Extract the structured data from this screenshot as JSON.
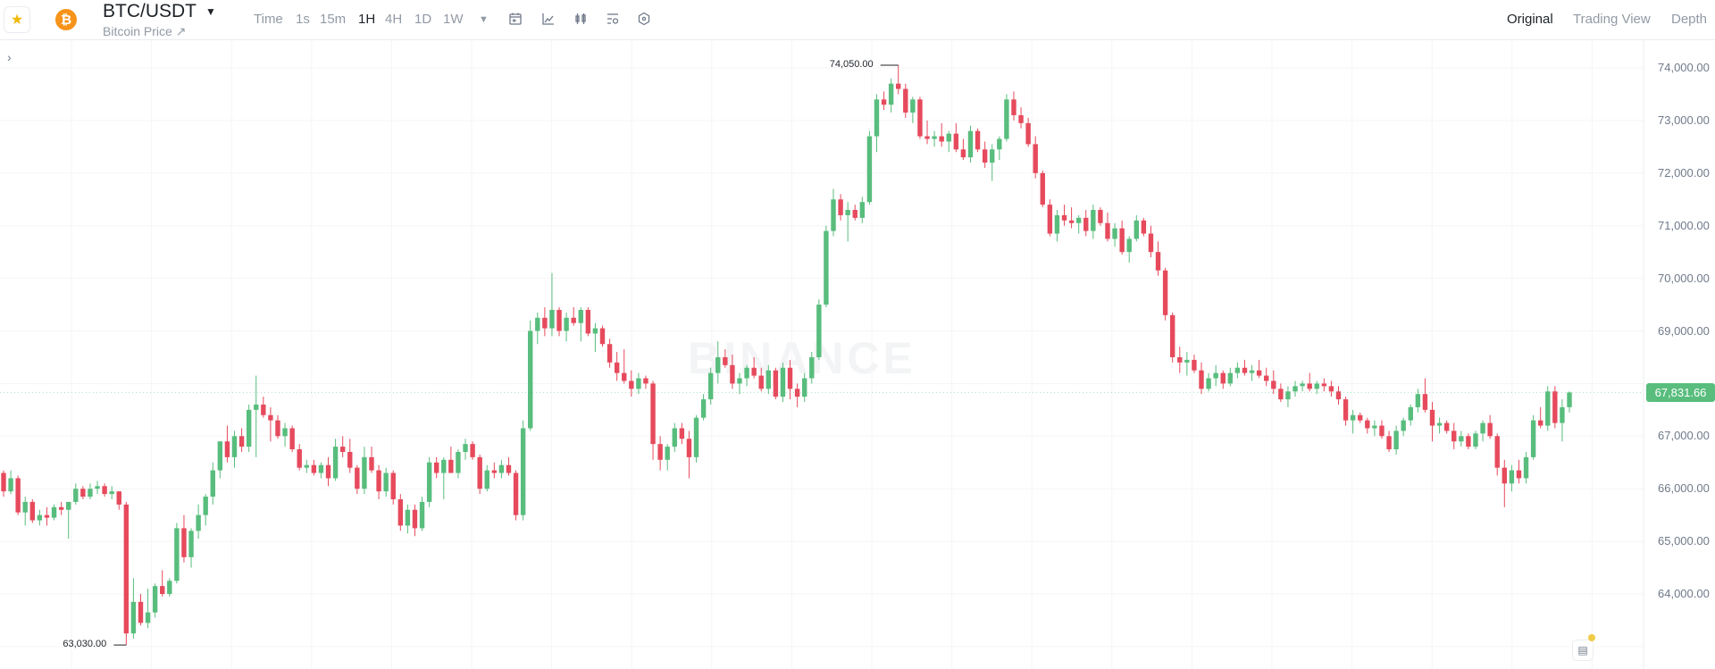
{
  "header": {
    "favorite_icon": "star-icon",
    "coin_icon": "bitcoin-icon",
    "coin_glyph": "₿",
    "symbol": "BTC/USDT",
    "subtitle": "Bitcoin Price ↗",
    "intervals": [
      {
        "label": "Time",
        "active": false
      },
      {
        "label": "1s",
        "active": false
      },
      {
        "label": "15m",
        "active": false
      },
      {
        "label": "1H",
        "active": true
      },
      {
        "label": "4H",
        "active": false
      },
      {
        "label": "1D",
        "active": false
      },
      {
        "label": "1W",
        "active": false
      }
    ],
    "tools": [
      "calendar-icon",
      "line-chart-icon",
      "candlestick-icon",
      "indicator-settings-icon",
      "hexagon-settings-icon"
    ],
    "views": [
      {
        "label": "Original",
        "active": true
      },
      {
        "label": "Trading View",
        "active": false
      },
      {
        "label": "Depth",
        "active": false
      }
    ]
  },
  "watermark": "BINANCE",
  "colors": {
    "up": "#58bd7d",
    "down": "#e64a5c",
    "grid": "#f5f5f5",
    "accent": "#f0b90b"
  },
  "chart_data": {
    "type": "candlestick",
    "interval": "1H",
    "y_ticks": [
      "74,000.00",
      "73,000.00",
      "72,000.00",
      "71,000.00",
      "70,000.00",
      "69,000.00",
      "67,000.00",
      "66,000.00",
      "65,000.00",
      "64,000.00"
    ],
    "y_tick_values": [
      74000,
      73000,
      72000,
      71000,
      70000,
      69000,
      67000,
      66000,
      65000,
      64000
    ],
    "ylim": [
      62100,
      74900
    ],
    "grid": true,
    "last_price": "67,831.66",
    "high_label": "74,050.00",
    "low_label": "63,030.00",
    "ohlc": [
      [
        66300,
        66350,
        65850,
        65950
      ],
      [
        65950,
        66350,
        65900,
        66200
      ],
      [
        66200,
        66250,
        65500,
        65550
      ],
      [
        65550,
        65850,
        65300,
        65750
      ],
      [
        65750,
        65800,
        65350,
        65400
      ],
      [
        65400,
        65600,
        65300,
        65500
      ],
      [
        65500,
        65650,
        65300,
        65450
      ],
      [
        65450,
        65700,
        65400,
        65650
      ],
      [
        65650,
        65750,
        65500,
        65600
      ],
      [
        65600,
        65700,
        65050,
        65750
      ],
      [
        65750,
        66100,
        65700,
        66000
      ],
      [
        66000,
        66050,
        65800,
        65850
      ],
      [
        65850,
        66100,
        65800,
        66000
      ],
      [
        66000,
        66150,
        65900,
        66050
      ],
      [
        66050,
        66100,
        65850,
        65900
      ],
      [
        65900,
        66050,
        65800,
        65950
      ],
      [
        65950,
        65950,
        65600,
        65700
      ],
      [
        65700,
        65750,
        63030,
        63250
      ],
      [
        63250,
        64300,
        63150,
        63850
      ],
      [
        63850,
        64000,
        63400,
        63450
      ],
      [
        63450,
        64100,
        63350,
        63650
      ],
      [
        63650,
        64200,
        63550,
        64150
      ],
      [
        64150,
        64450,
        63950,
        64000
      ],
      [
        64000,
        64300,
        63950,
        64250
      ],
      [
        64250,
        65350,
        64200,
        65250
      ],
      [
        65250,
        65500,
        64600,
        64700
      ],
      [
        64700,
        65250,
        64500,
        65200
      ],
      [
        65200,
        65700,
        65050,
        65500
      ],
      [
        65500,
        65900,
        65300,
        65850
      ],
      [
        65850,
        66500,
        65700,
        66350
      ],
      [
        66350,
        66900,
        66200,
        66900
      ],
      [
        66900,
        67200,
        66500,
        66600
      ],
      [
        66600,
        67100,
        66400,
        67000
      ],
      [
        67000,
        67150,
        66700,
        66800
      ],
      [
        66800,
        67600,
        66700,
        67500
      ],
      [
        67500,
        68150,
        66600,
        67600
      ],
      [
        67600,
        67750,
        67350,
        67400
      ],
      [
        67400,
        67550,
        66900,
        67300
      ],
      [
        67300,
        67400,
        66950,
        67000
      ],
      [
        67000,
        67250,
        66800,
        67150
      ],
      [
        67150,
        67200,
        66700,
        66750
      ],
      [
        66750,
        66850,
        66350,
        66400
      ],
      [
        66400,
        66550,
        66300,
        66450
      ],
      [
        66450,
        66550,
        66250,
        66300
      ],
      [
        66300,
        66500,
        66200,
        66450
      ],
      [
        66450,
        66600,
        66050,
        66200
      ],
      [
        66200,
        66950,
        66150,
        66800
      ],
      [
        66800,
        67000,
        66600,
        66700
      ],
      [
        66700,
        66950,
        66300,
        66400
      ],
      [
        66400,
        66450,
        65900,
        66000
      ],
      [
        66000,
        66800,
        65900,
        66600
      ],
      [
        66600,
        66800,
        66300,
        66350
      ],
      [
        66350,
        66450,
        65800,
        65950
      ],
      [
        65950,
        66400,
        65850,
        66300
      ],
      [
        66300,
        66350,
        65700,
        65800
      ],
      [
        65800,
        65900,
        65200,
        65300
      ],
      [
        65300,
        65700,
        65150,
        65600
      ],
      [
        65600,
        65700,
        65100,
        65250
      ],
      [
        65250,
        65850,
        65200,
        65750
      ],
      [
        65750,
        66600,
        65650,
        66500
      ],
      [
        66500,
        66600,
        66200,
        66300
      ],
      [
        66300,
        66600,
        65800,
        66550
      ],
      [
        66550,
        66800,
        66350,
        66300
      ],
      [
        66300,
        66750,
        66200,
        66700
      ],
      [
        66700,
        66950,
        66550,
        66850
      ],
      [
        66850,
        66900,
        66550,
        66600
      ],
      [
        66600,
        66650,
        65900,
        66000
      ],
      [
        66000,
        66450,
        65950,
        66350
      ],
      [
        66350,
        66500,
        66200,
        66300
      ],
      [
        66300,
        66550,
        66200,
        66450
      ],
      [
        66450,
        66600,
        66250,
        66300
      ],
      [
        66300,
        66350,
        65400,
        65500
      ],
      [
        65500,
        67300,
        65400,
        67150
      ],
      [
        67150,
        69200,
        67100,
        69000
      ],
      [
        69000,
        69350,
        68750,
        69250
      ],
      [
        69250,
        69450,
        68900,
        69050
      ],
      [
        69050,
        70100,
        68900,
        69400
      ],
      [
        69400,
        69450,
        68900,
        69000
      ],
      [
        69000,
        69350,
        68800,
        69250
      ],
      [
        69250,
        69450,
        69100,
        69150
      ],
      [
        69150,
        69450,
        68800,
        69400
      ],
      [
        69400,
        69450,
        68900,
        68950
      ],
      [
        68950,
        69150,
        68600,
        69050
      ],
      [
        69050,
        69100,
        68700,
        68750
      ],
      [
        68750,
        68850,
        68300,
        68400
      ],
      [
        68400,
        68600,
        68050,
        68200
      ],
      [
        68200,
        68650,
        68000,
        68050
      ],
      [
        68050,
        68250,
        67750,
        67900
      ],
      [
        67900,
        68200,
        67800,
        68100
      ],
      [
        68100,
        68150,
        67900,
        68000
      ],
      [
        68000,
        68050,
        66550,
        66850
      ],
      [
        66850,
        67000,
        66350,
        66550
      ],
      [
        66550,
        66850,
        66350,
        66800
      ],
      [
        66800,
        67250,
        66700,
        67150
      ],
      [
        67150,
        67250,
        66850,
        66950
      ],
      [
        66950,
        67100,
        66200,
        66600
      ],
      [
        66600,
        67400,
        66500,
        67350
      ],
      [
        67350,
        67800,
        67300,
        67700
      ],
      [
        67700,
        68300,
        67600,
        68200
      ],
      [
        68200,
        68800,
        68000,
        68500
      ],
      [
        68500,
        68650,
        68300,
        68350
      ],
      [
        68350,
        68550,
        67900,
        68000
      ],
      [
        68000,
        68200,
        67800,
        68100
      ],
      [
        68100,
        68350,
        67950,
        68300
      ],
      [
        68300,
        68500,
        68100,
        68150
      ],
      [
        68150,
        68300,
        67850,
        67900
      ],
      [
        67900,
        68350,
        67800,
        68250
      ],
      [
        68250,
        68300,
        67700,
        67750
      ],
      [
        67750,
        68400,
        67650,
        68300
      ],
      [
        68300,
        68450,
        67700,
        67900
      ],
      [
        67900,
        68000,
        67550,
        67750
      ],
      [
        67750,
        68200,
        67650,
        68100
      ],
      [
        68100,
        68600,
        68000,
        68500
      ],
      [
        68500,
        69600,
        68450,
        69500
      ],
      [
        69500,
        71000,
        69450,
        70900
      ],
      [
        70900,
        71700,
        70800,
        71500
      ],
      [
        71500,
        71600,
        71100,
        71200
      ],
      [
        71200,
        71450,
        70700,
        71300
      ],
      [
        71300,
        71400,
        71100,
        71150
      ],
      [
        71150,
        71550,
        71050,
        71450
      ],
      [
        71450,
        72800,
        71400,
        72700
      ],
      [
        72700,
        73500,
        72400,
        73400
      ],
      [
        73400,
        73550,
        73200,
        73300
      ],
      [
        73300,
        73800,
        73150,
        73700
      ],
      [
        73700,
        74050,
        73500,
        73600
      ],
      [
        73600,
        73700,
        73050,
        73150
      ],
      [
        73150,
        73450,
        72950,
        73400
      ],
      [
        73400,
        73450,
        72650,
        72700
      ],
      [
        72700,
        73000,
        72550,
        72650
      ],
      [
        72650,
        72800,
        72500,
        72700
      ],
      [
        72700,
        72950,
        72500,
        72600
      ],
      [
        72600,
        72800,
        72400,
        72750
      ],
      [
        72750,
        72950,
        72400,
        72450
      ],
      [
        72450,
        72650,
        72250,
        72300
      ],
      [
        72300,
        72900,
        72200,
        72800
      ],
      [
        72800,
        72850,
        72400,
        72450
      ],
      [
        72450,
        72600,
        72100,
        72200
      ],
      [
        72200,
        72550,
        71850,
        72450
      ],
      [
        72450,
        72700,
        72250,
        72650
      ],
      [
        72650,
        73500,
        72600,
        73400
      ],
      [
        73400,
        73550,
        73000,
        73100
      ],
      [
        73100,
        73250,
        72850,
        72950
      ],
      [
        72950,
        73050,
        72500,
        72550
      ],
      [
        72550,
        72700,
        71900,
        72000
      ],
      [
        72000,
        72050,
        71350,
        71400
      ],
      [
        71400,
        71500,
        70800,
        70850
      ],
      [
        70850,
        71300,
        70700,
        71200
      ],
      [
        71200,
        71400,
        71000,
        71100
      ],
      [
        71100,
        71350,
        70950,
        71050
      ],
      [
        71050,
        71200,
        70850,
        71150
      ],
      [
        71150,
        71300,
        70800,
        70900
      ],
      [
        70900,
        71400,
        70750,
        71300
      ],
      [
        71300,
        71350,
        71000,
        71050
      ],
      [
        71050,
        71250,
        70700,
        70750
      ],
      [
        70750,
        71050,
        70600,
        70950
      ],
      [
        70950,
        71100,
        70450,
        70500
      ],
      [
        70500,
        70800,
        70300,
        70750
      ],
      [
        70750,
        71200,
        70700,
        71100
      ],
      [
        71100,
        71150,
        70800,
        70850
      ],
      [
        70850,
        71000,
        70400,
        70500
      ],
      [
        70500,
        70700,
        70050,
        70150
      ],
      [
        70150,
        70200,
        69200,
        69300
      ],
      [
        69300,
        69350,
        68400,
        68500
      ],
      [
        68500,
        68700,
        68200,
        68400
      ],
      [
        68400,
        68600,
        68150,
        68450
      ],
      [
        68450,
        68550,
        68200,
        68250
      ],
      [
        68250,
        68400,
        67800,
        67900
      ],
      [
        67900,
        68200,
        67850,
        68100
      ],
      [
        68100,
        68350,
        67950,
        68200
      ],
      [
        68200,
        68250,
        67900,
        68000
      ],
      [
        68000,
        68300,
        67950,
        68200
      ],
      [
        68200,
        68400,
        68100,
        68300
      ],
      [
        68300,
        68450,
        68150,
        68200
      ],
      [
        68200,
        68350,
        68050,
        68250
      ],
      [
        68250,
        68450,
        68100,
        68150
      ],
      [
        68150,
        68300,
        67950,
        68050
      ],
      [
        68050,
        68250,
        67800,
        67900
      ],
      [
        67900,
        68000,
        67650,
        67700
      ],
      [
        67700,
        67950,
        67550,
        67850
      ],
      [
        67850,
        68050,
        67750,
        67950
      ],
      [
        67950,
        68050,
        67850,
        68000
      ],
      [
        68000,
        68200,
        67850,
        67900
      ],
      [
        67900,
        68050,
        67800,
        68000
      ],
      [
        68000,
        68100,
        67850,
        67950
      ],
      [
        67950,
        68050,
        67750,
        67850
      ],
      [
        67850,
        67950,
        67600,
        67700
      ],
      [
        67700,
        67750,
        67200,
        67300
      ],
      [
        67300,
        67500,
        67050,
        67400
      ],
      [
        67400,
        67450,
        67250,
        67300
      ],
      [
        67300,
        67350,
        67050,
        67150
      ],
      [
        67150,
        67300,
        67000,
        67200
      ],
      [
        67200,
        67300,
        66950,
        67000
      ],
      [
        67000,
        67100,
        66700,
        66750
      ],
      [
        66750,
        67200,
        66650,
        67100
      ],
      [
        67100,
        67350,
        67000,
        67300
      ],
      [
        67300,
        67600,
        67200,
        67550
      ],
      [
        67550,
        67900,
        67450,
        67800
      ],
      [
        67800,
        68100,
        67450,
        67500
      ],
      [
        67500,
        67650,
        66900,
        67200
      ],
      [
        67200,
        67350,
        67050,
        67250
      ],
      [
        67250,
        67300,
        67050,
        67100
      ],
      [
        67100,
        67250,
        66750,
        66900
      ],
      [
        66900,
        67100,
        66800,
        67000
      ],
      [
        67000,
        67050,
        66750,
        66800
      ],
      [
        66800,
        67100,
        66750,
        67050
      ],
      [
        67050,
        67300,
        66900,
        67250
      ],
      [
        67250,
        67400,
        66950,
        67000
      ],
      [
        67000,
        67050,
        66250,
        66400
      ],
      [
        66400,
        66550,
        65650,
        66100
      ],
      [
        66100,
        66450,
        65950,
        66350
      ],
      [
        66350,
        66550,
        66100,
        66200
      ],
      [
        66200,
        66700,
        66100,
        66600
      ],
      [
        66600,
        67400,
        66550,
        67300
      ],
      [
        67300,
        67550,
        67150,
        67200
      ],
      [
        67200,
        67950,
        67100,
        67850
      ],
      [
        67850,
        67950,
        67150,
        67250
      ],
      [
        67250,
        67700,
        66900,
        67550
      ],
      [
        67550,
        67850,
        67450,
        67830
      ]
    ]
  }
}
